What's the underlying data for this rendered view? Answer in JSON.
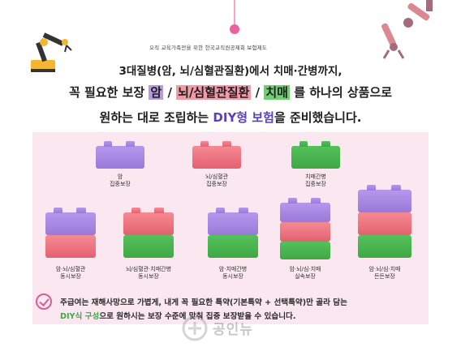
{
  "header": {
    "note": "오직 교육가족만을 위한 한국교직원공제회 보험제도"
  },
  "headline": {
    "line1": "3대질병(암, 뇌/심혈관질환)에서 치매·간병까지,",
    "line2_prefix": "꼭 필요한 보장 ",
    "line2_cancer": "암",
    "line2_sep1": " / ",
    "line2_cardio": "뇌/심혈관질환",
    "line2_sep2": " / ",
    "line2_dementia": "치매",
    "line2_suffix": " 를 하나의 상품으로",
    "line3_prefix": "원하는 대로 조립하는 ",
    "line3_diy": "DIY형 보험",
    "line3_suffix": "을 준비했습니다."
  },
  "products": {
    "single": [
      {
        "line1": "암",
        "line2": "집중보장",
        "color": "#a688e3"
      },
      {
        "line1": "뇌/심혈관",
        "line2": "집중보장",
        "color": "#ee7581"
      },
      {
        "line1": "치매간병",
        "line2": "집중보장",
        "color": "#4cb752"
      }
    ],
    "combo": [
      {
        "line1": "암·뇌/심혈관",
        "line2": "동시보장"
      },
      {
        "line1": "뇌/심혈관·치매간병",
        "line2": "동시보장"
      },
      {
        "line1": "암·치매간병",
        "line2": "동시보장"
      },
      {
        "line1": "암·뇌/심·치매",
        "line2": "실속보장"
      },
      {
        "line1": "암·뇌/심·치매",
        "line2": "든든보장"
      }
    ]
  },
  "footer": {
    "line1": "주급여는 재해사망으로 가볍게, 내게 꼭 필요한 특약(기본특약 + 선택특약)만 골라 담는",
    "line2_diy": "DIY식 구성",
    "line2_rest": "으로 원하시는 보장 수준에 맞춰 집중 보장받을 수 있습니다."
  },
  "watermark": {
    "text": "공인뉴"
  }
}
